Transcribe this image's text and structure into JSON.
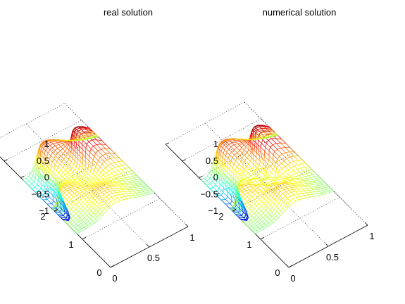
{
  "chart_data": [
    {
      "type": "surface",
      "title": "real solution",
      "xlabel": "",
      "ylabel": "",
      "zlabel": "",
      "xlim": [
        0,
        1
      ],
      "ylim": [
        0,
        2
      ],
      "zlim": [
        -1,
        1
      ],
      "x_ticks": [
        "0",
        "0.5",
        "1"
      ],
      "y_ticks": [
        "0",
        "1",
        "2"
      ],
      "z_ticks": [
        "-1",
        "-0.5",
        "0",
        "0.5",
        "1"
      ],
      "grid": true,
      "colormap": "jet",
      "grid_size": [
        25,
        40
      ],
      "peaks": [
        {
          "x": 0.9,
          "y": 1.25,
          "z": 1.0
        },
        {
          "x": 0.5,
          "y": 1.75,
          "z": 0.62
        },
        {
          "x": 0.25,
          "y": 0.8,
          "z": 0.35
        },
        {
          "x": 0.6,
          "y": 0.3,
          "z": 0.35
        }
      ],
      "troughs": [
        {
          "x": 0.05,
          "y": 1.4,
          "z": -0.85
        }
      ],
      "noise": 0
    },
    {
      "type": "surface",
      "title": "numerical solution",
      "xlabel": "",
      "ylabel": "",
      "zlabel": "",
      "xlim": [
        0,
        1
      ],
      "ylim": [
        0,
        2
      ],
      "zlim": [
        -1,
        1
      ],
      "x_ticks": [
        "0",
        "0.5",
        "1"
      ],
      "y_ticks": [
        "0",
        "1",
        "2"
      ],
      "z_ticks": [
        "-1",
        "-0.5",
        "0",
        "0.5",
        "1"
      ],
      "grid": true,
      "colormap": "jet",
      "grid_size": [
        25,
        40
      ],
      "peaks": [
        {
          "x": 0.9,
          "y": 1.25,
          "z": 1.0
        },
        {
          "x": 0.5,
          "y": 1.75,
          "z": 0.62
        },
        {
          "x": 0.25,
          "y": 0.8,
          "z": 0.35
        },
        {
          "x": 0.6,
          "y": 0.3,
          "z": 0.35
        }
      ],
      "troughs": [
        {
          "x": 0.05,
          "y": 1.4,
          "z": -0.85
        }
      ],
      "noise": 0.08
    }
  ]
}
